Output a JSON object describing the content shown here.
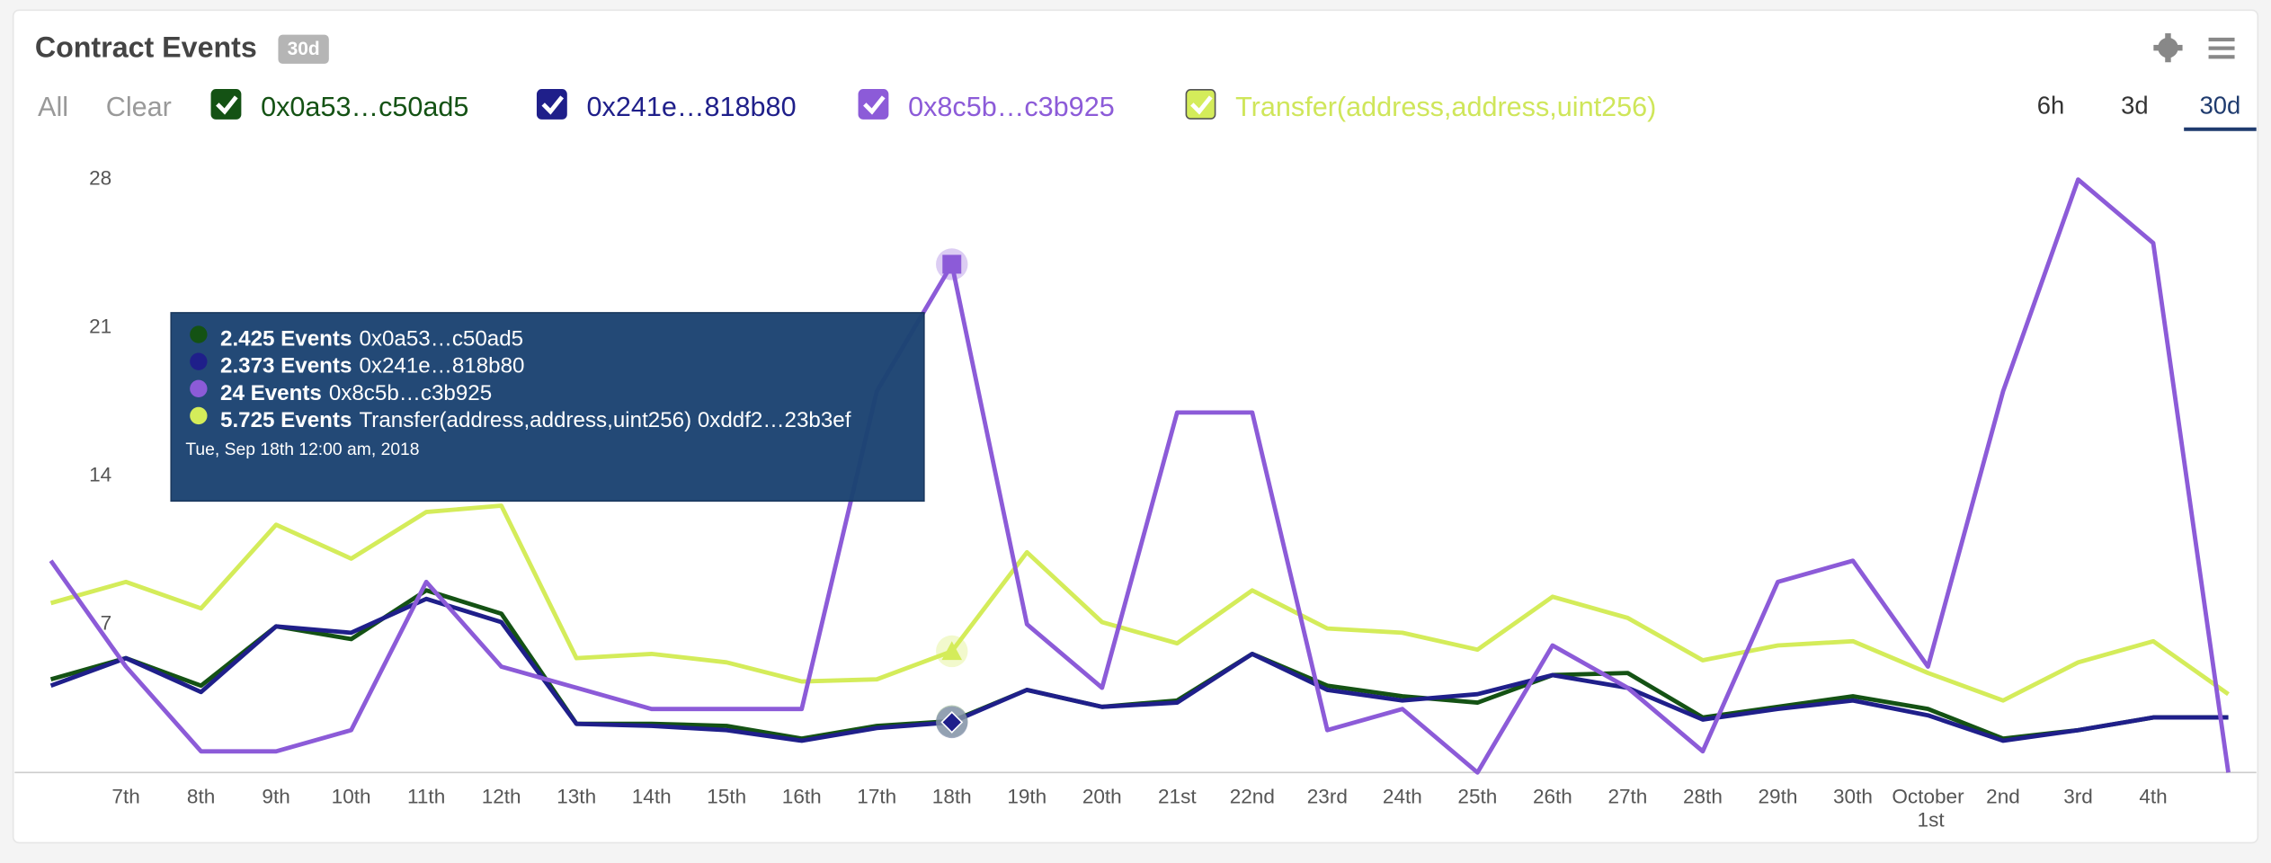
{
  "header": {
    "title": "Contract Events",
    "badge": "30d",
    "all": "All",
    "clear": "Clear",
    "ranges": [
      "6h",
      "3d",
      "30d"
    ],
    "selected_range": 2
  },
  "chart_data": {
    "type": "line",
    "categories": [
      null,
      "7th",
      "8th",
      "9th",
      "10th",
      "11th",
      "12th",
      "13th",
      "14th",
      "15th",
      "16th",
      "17th",
      "18th",
      "19th",
      "20th",
      "21st",
      "22nd",
      "23rd",
      "24th",
      "25th",
      "26th",
      "27th",
      "28th",
      "29th",
      "30th",
      "October 1st",
      "2nd",
      "3rd",
      "4th",
      null
    ],
    "ylim": [
      0,
      28
    ],
    "yticks": [
      7,
      14,
      21,
      28
    ],
    "grid": false,
    "series": [
      {
        "name": "0x0a53…c50ad5",
        "color": "#145214",
        "marker": "circle",
        "values": [
          4.4,
          5.4,
          4.1,
          6.9,
          6.3,
          8.6,
          7.5,
          2.3,
          2.3,
          2.2,
          1.6,
          2.2,
          2.425,
          3.9,
          3.1,
          3.4,
          5.6,
          4.1,
          3.6,
          3.3,
          4.6,
          4.7,
          2.6,
          3.1,
          3.6,
          3.0,
          1.6,
          2.0,
          2.6,
          2.6
        ]
      },
      {
        "name": "0x241e…818b80",
        "color": "#1f1f8a",
        "marker": "diamond",
        "values": [
          4.1,
          5.4,
          3.8,
          6.9,
          6.6,
          8.2,
          7.1,
          2.3,
          2.2,
          2.0,
          1.5,
          2.1,
          2.373,
          3.9,
          3.1,
          3.3,
          5.6,
          3.9,
          3.4,
          3.7,
          4.6,
          4.0,
          2.5,
          3.0,
          3.4,
          2.7,
          1.5,
          2.0,
          2.6,
          2.6
        ]
      },
      {
        "name": "0x8c5b…c3b925",
        "color": "#8c5bd8",
        "marker": "square",
        "values": [
          10,
          5,
          1,
          1,
          2,
          9,
          5,
          4,
          3,
          3,
          3,
          18,
          24,
          7,
          4,
          17,
          17,
          2,
          3,
          0,
          6,
          4,
          1,
          9,
          10,
          5,
          18,
          28,
          25,
          0
        ]
      },
      {
        "name": "Transfer(address,address,uint256)",
        "color": "#d4ec5a",
        "marker": "triangle",
        "values": [
          8.0,
          9.0,
          7.75,
          11.7,
          10.1,
          12.3,
          12.6,
          5.4,
          5.6,
          5.2,
          4.3,
          4.4,
          5.725,
          10.4,
          7.1,
          6.1,
          8.6,
          6.8,
          6.6,
          5.8,
          8.3,
          7.3,
          5.3,
          6.0,
          6.2,
          4.7,
          3.4,
          5.2,
          6.2,
          3.7
        ]
      }
    ],
    "active_index": 12,
    "tooltip": {
      "items": [
        {
          "label": "2.425 Events",
          "name": "0x0a53…c50ad5"
        },
        {
          "label": "2.373 Events",
          "name": "0x241e…818b80"
        },
        {
          "label": "24 Events",
          "name": "0x8c5b…c3b925"
        },
        {
          "label": "5.725 Events",
          "name": "Transfer(address,address,uint256) 0xddf2…23b3ef"
        }
      ],
      "date": "Tue, Sep 18th 12:00 am, 2018"
    }
  }
}
